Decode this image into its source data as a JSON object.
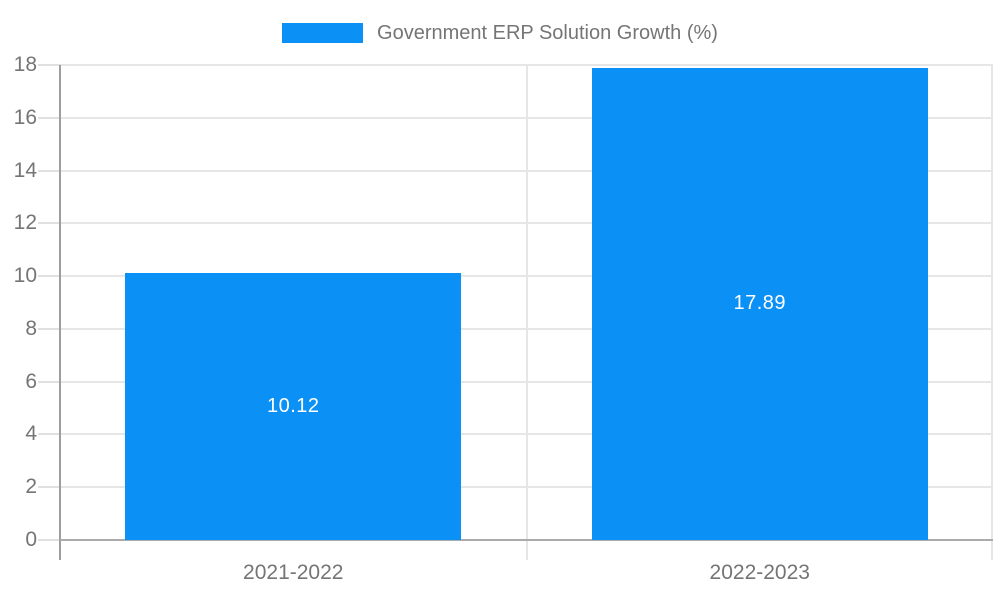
{
  "page": {
    "background": "#ffffff"
  },
  "legend": {
    "label": "Government ERP Solution Growth (%)"
  },
  "chart_data": {
    "type": "bar",
    "title": "Government ERP Solution Growth (%)",
    "categories": [
      "2021-2022",
      "2022-2023"
    ],
    "values": [
      10.12,
      17.89
    ],
    "value_labels": [
      "10.12",
      "17.89"
    ],
    "xlabel": "",
    "ylabel": "",
    "ylim": [
      0,
      18
    ],
    "yticks": [
      0,
      2,
      4,
      6,
      8,
      10,
      12,
      14,
      16,
      18
    ],
    "grid": true,
    "legend_position": "top-center",
    "bar_width_fraction": 0.72
  },
  "colors": {
    "bar": "#0b90f6",
    "grid": "#e6e6e6",
    "axis_line": "#9e9e9e",
    "baseline": "#ababab",
    "tick_stub": "#e0e0e0",
    "tick_text": "#757575",
    "legend_text": "#757575",
    "value_text": "#ffffff",
    "background": "#ffffff"
  }
}
